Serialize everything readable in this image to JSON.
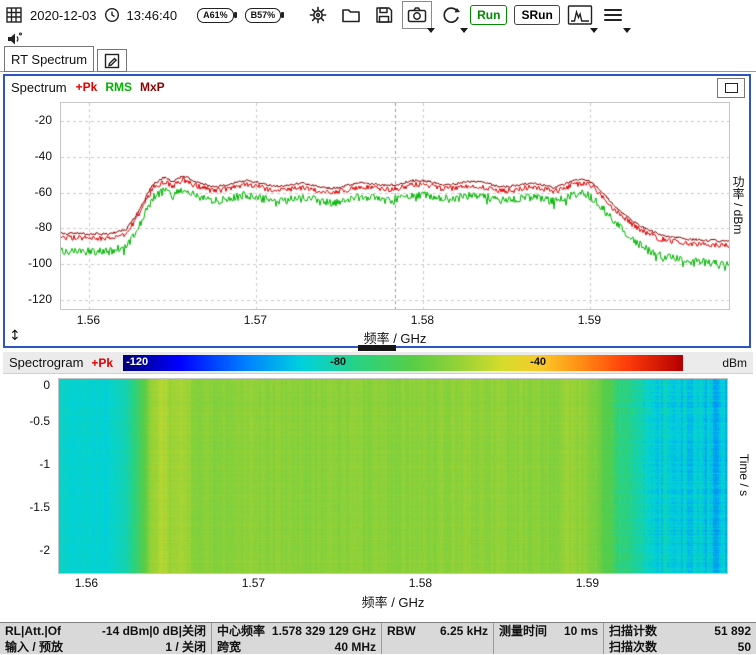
{
  "colors": {
    "active_panel_border": "#2e55c3",
    "run_green": "#008a00",
    "trace_pk": "#e00000",
    "trace_rms": "#00b400",
    "trace_mxp": "#8c0000"
  },
  "toolbar": {
    "date": "2020-12-03",
    "time": "13:46:40",
    "battery_a": "A61%",
    "battery_b": "B57%",
    "run": "Run",
    "srun": "SRun"
  },
  "tabs": {
    "rt_spectrum": "RT Spectrum"
  },
  "statusbar": {
    "fields": [
      {
        "label": "RL|Att.|Of",
        "value": "-14 dBm|0 dB|关闭"
      },
      {
        "label": "输入 / 预放",
        "value": "1 / 关闭"
      },
      {
        "label": "中心频率",
        "value": "1.578 329 129 GHz"
      },
      {
        "label": "跨宽",
        "value": "40 MHz"
      },
      {
        "label": "RBW",
        "value": "6.25 kHz"
      },
      {
        "label": "测量时间",
        "value": "10 ms"
      },
      {
        "label": "扫描计数",
        "value": "51 892"
      },
      {
        "label": "扫描次数",
        "value": "50"
      }
    ]
  },
  "chart_data": [
    {
      "type": "line",
      "title": "Spectrum",
      "xlabel": "频率 / GHz",
      "ylabel": "功率 / dBm",
      "xlim": [
        1.5583,
        1.5983
      ],
      "ylim": [
        -125,
        -10
      ],
      "xticks": [
        1.56,
        1.57,
        1.58,
        1.59
      ],
      "yticks": [
        -20,
        -40,
        -60,
        -80,
        -100,
        -120
      ],
      "center_freq_ghz": 1.578329129,
      "series": [
        {
          "name": "+Pk",
          "color": "#e00000"
        },
        {
          "name": "RMS",
          "color": "#00b400"
        },
        {
          "name": "MxP",
          "color": "#8c0000"
        }
      ],
      "pk_anchors": [
        [
          1.5583,
          -85
        ],
        [
          1.5612,
          -85.5
        ],
        [
          1.5622,
          -83
        ],
        [
          1.563,
          -72
        ],
        [
          1.5638,
          -56
        ],
        [
          1.5645,
          -52
        ],
        [
          1.565,
          -56
        ],
        [
          1.5656,
          -53.5
        ],
        [
          1.5662,
          -57
        ],
        [
          1.5672,
          -58.5
        ],
        [
          1.5695,
          -57.5
        ],
        [
          1.574,
          -58
        ],
        [
          1.579,
          -57.5
        ],
        [
          1.584,
          -57
        ],
        [
          1.5862,
          -57.5
        ],
        [
          1.5878,
          -58.5
        ],
        [
          1.589,
          -55.5
        ],
        [
          1.5898,
          -57
        ],
        [
          1.5906,
          -62
        ],
        [
          1.5915,
          -70
        ],
        [
          1.5928,
          -80
        ],
        [
          1.5942,
          -86
        ],
        [
          1.596,
          -88.5
        ],
        [
          1.5983,
          -89.5
        ]
      ],
      "rms_offset_anchors": [
        [
          1.5583,
          -8
        ],
        [
          1.5625,
          -7
        ],
        [
          1.564,
          -5
        ],
        [
          1.57,
          -6
        ],
        [
          1.585,
          -5.5
        ],
        [
          1.5895,
          -5.5
        ],
        [
          1.5915,
          -7
        ],
        [
          1.5935,
          -9
        ],
        [
          1.5983,
          -10.5
        ]
      ],
      "mxp_offset": 2.3
    },
    {
      "type": "heatmap",
      "title": "Spectrogram",
      "trace": "+Pk",
      "xlabel": "频率 / GHz",
      "ylabel": "Time / s",
      "xlim": [
        1.5583,
        1.5983
      ],
      "ylim": [
        -2.25,
        0
      ],
      "yticks": [
        0,
        -0.5,
        -1,
        -1.5,
        -2
      ],
      "colorbar": {
        "labels": [
          -120,
          -80,
          -40
        ],
        "units": "dBm",
        "domain": [
          -123,
          -11
        ],
        "stops": [
          [
            0.0,
            0,
            0,
            120
          ],
          [
            0.1,
            0,
            0,
            255
          ],
          [
            0.22,
            0,
            130,
            255
          ],
          [
            0.32,
            0,
            210,
            220
          ],
          [
            0.42,
            40,
            210,
            130
          ],
          [
            0.52,
            90,
            205,
            70
          ],
          [
            0.6,
            150,
            210,
            55
          ],
          [
            0.68,
            215,
            220,
            45
          ],
          [
            0.75,
            250,
            200,
            40
          ],
          [
            0.82,
            255,
            140,
            20
          ],
          [
            0.9,
            255,
            60,
            10
          ],
          [
            1.0,
            180,
            0,
            0
          ]
        ]
      }
    }
  ]
}
